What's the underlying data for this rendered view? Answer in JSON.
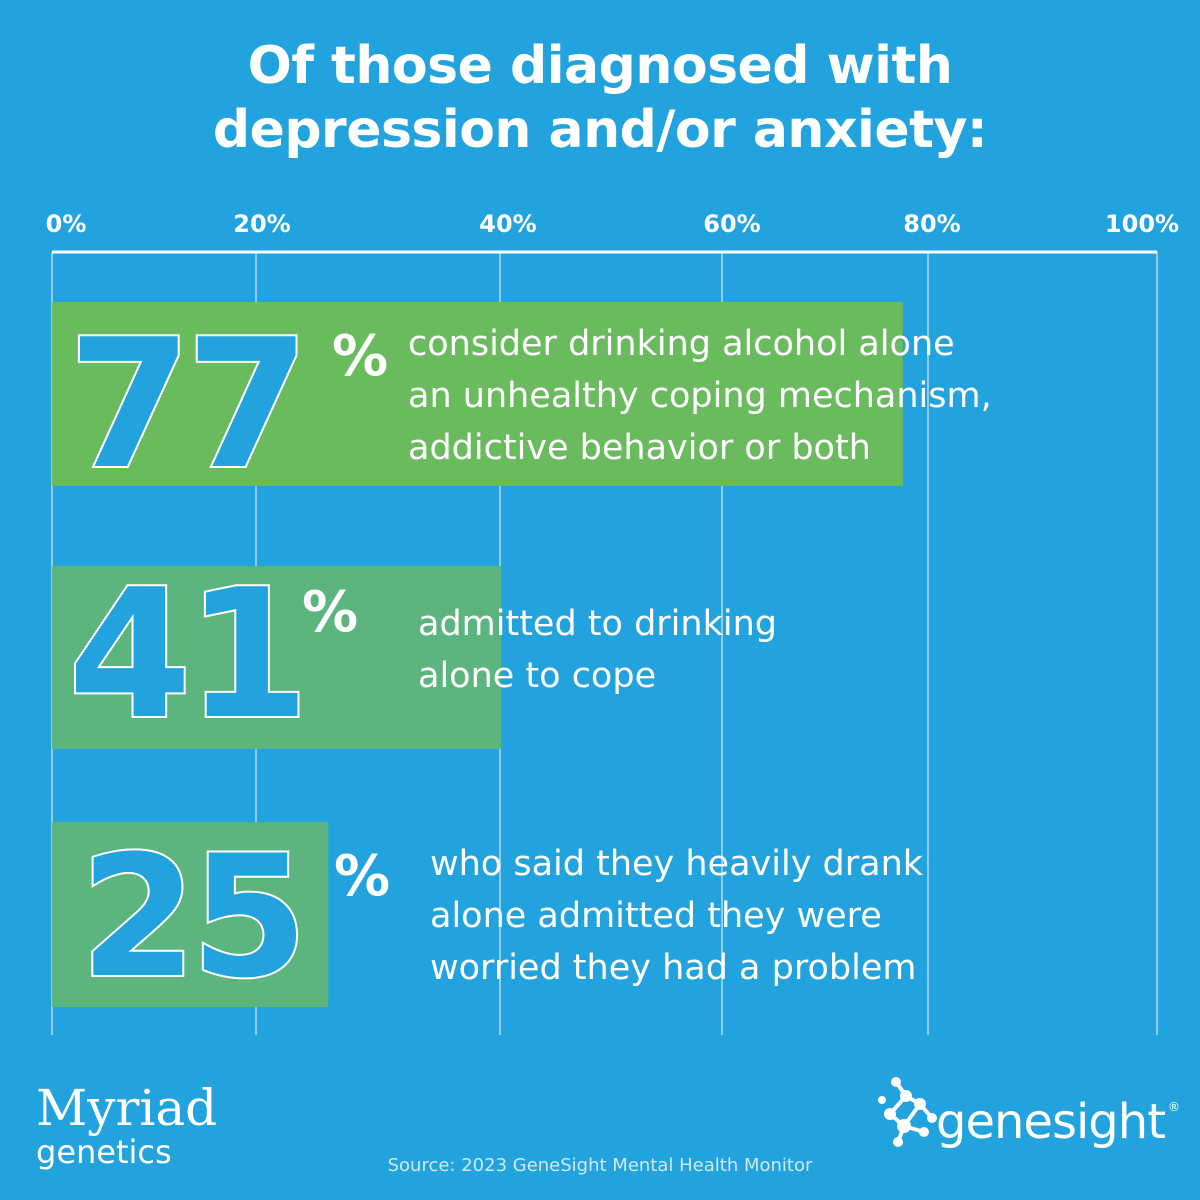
{
  "title": {
    "line1": "Of those diagnosed with",
    "line2": "depression and/or anxiety:"
  },
  "chart_data": {
    "type": "bar",
    "orientation": "horizontal",
    "x_ticks": [
      "0%",
      "20%",
      "40%",
      "60%",
      "80%",
      "100%"
    ],
    "xlim": [
      0,
      100
    ],
    "grid": true,
    "bars": [
      {
        "value": 77,
        "number": "77",
        "percent_sign": "%",
        "color": "#6aba5e",
        "label_lines": [
          "consider drinking alcohol alone",
          "an unhealthy coping mechanism,",
          "addictive behavior or both"
        ]
      },
      {
        "value": 41,
        "number": "41",
        "percent_sign": "%",
        "color": "#5cb57e",
        "label_lines": [
          "admitted to drinking",
          "alone to cope"
        ]
      },
      {
        "value": 25,
        "number": "25",
        "percent_sign": "%",
        "color": "#5cb57e",
        "label_lines": [
          "who said they heavily drank",
          "alone admitted they were",
          "worried they had a problem"
        ]
      }
    ]
  },
  "colors": {
    "background": "#22a3dd",
    "grid": "#8fcdef",
    "text": "#ffffff"
  },
  "logos": {
    "myriad": {
      "word1": "Myriad",
      "word2": "genetics"
    },
    "genesight": {
      "wordmark": "genesight",
      "reg": "®",
      "icon": "molecule-dots-icon"
    }
  },
  "source": "Source: 2023 GeneSight Mental Health Monitor"
}
